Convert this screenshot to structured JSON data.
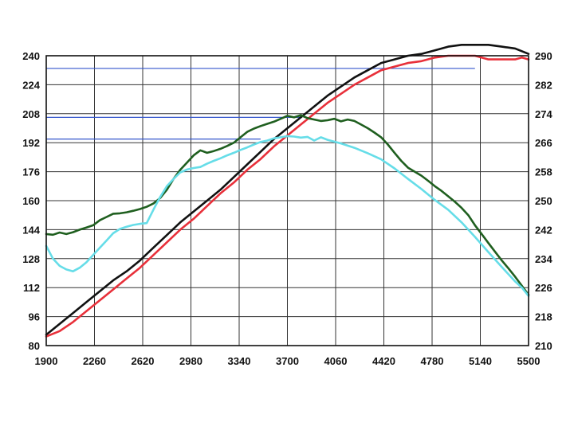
{
  "chart_data": {
    "type": "line",
    "title": "",
    "xlabel": "",
    "ylabel": "",
    "y2label": "",
    "xlim": [
      1900,
      5500
    ],
    "ylim": [
      80,
      240
    ],
    "y2lim": [
      210,
      290
    ],
    "grid": true,
    "legend": "none",
    "x_ticks": [
      1900,
      2260,
      2620,
      2980,
      3340,
      3700,
      4060,
      4420,
      4780,
      5140,
      5500
    ],
    "y_ticks_left": [
      80,
      96,
      112,
      128,
      144,
      160,
      176,
      192,
      208,
      224,
      240
    ],
    "y_ticks_right": [
      210,
      218,
      226,
      234,
      242,
      250,
      258,
      266,
      274,
      282,
      290
    ],
    "colors": {
      "grid": "#333333",
      "guides": "#3355cc",
      "black": "#111111",
      "red": "#e8303a",
      "green": "#1f5f1f",
      "cyan": "#66dde8"
    },
    "series": [
      {
        "color": "#111111",
        "axis": "left",
        "x": [
          1900,
          2000,
          2100,
          2200,
          2300,
          2400,
          2500,
          2600,
          2700,
          2800,
          2900,
          3000,
          3100,
          3200,
          3300,
          3400,
          3500,
          3600,
          3700,
          3800,
          3900,
          4000,
          4100,
          4200,
          4300,
          4400,
          4500,
          4600,
          4700,
          4800,
          4900,
          5000,
          5100,
          5200,
          5300,
          5400,
          5500
        ],
        "values": [
          86,
          92,
          98,
          104,
          110,
          116,
          121,
          127,
          134,
          141,
          148,
          154,
          160,
          166,
          173,
          180,
          187,
          194,
          200,
          206,
          212,
          218,
          223,
          228,
          232,
          236,
          238,
          240,
          241,
          243,
          245,
          246,
          246,
          246,
          245,
          244,
          241
        ]
      },
      {
        "color": "#e8303a",
        "axis": "left",
        "x": [
          1900,
          2000,
          2100,
          2200,
          2300,
          2400,
          2500,
          2600,
          2700,
          2800,
          2900,
          3000,
          3100,
          3200,
          3300,
          3400,
          3500,
          3600,
          3700,
          3800,
          3900,
          4000,
          4100,
          4200,
          4300,
          4400,
          4500,
          4600,
          4700,
          4800,
          4900,
          5000,
          5100,
          5200,
          5300,
          5400,
          5450,
          5500
        ],
        "values": [
          85,
          88,
          93,
          99,
          105,
          111,
          117,
          123,
          130,
          137,
          144,
          150,
          157,
          164,
          170,
          177,
          183,
          190,
          196,
          202,
          208,
          214,
          219,
          224,
          228,
          232,
          234,
          236,
          237,
          239,
          240,
          240,
          240,
          238,
          238,
          238,
          239,
          238
        ]
      },
      {
        "color": "#1f5f1f",
        "axis": "right",
        "x": [
          1900,
          1950,
          2000,
          2050,
          2100,
          2150,
          2200,
          2250,
          2300,
          2350,
          2400,
          2450,
          2500,
          2550,
          2600,
          2650,
          2700,
          2750,
          2800,
          2850,
          2900,
          2950,
          3000,
          3050,
          3100,
          3150,
          3200,
          3250,
          3300,
          3350,
          3400,
          3450,
          3500,
          3550,
          3600,
          3650,
          3700,
          3750,
          3800,
          3850,
          3900,
          3950,
          4000,
          4050,
          4100,
          4150,
          4200,
          4250,
          4300,
          4350,
          4400,
          4450,
          4500,
          4550,
          4600,
          4650,
          4700,
          4750,
          4800,
          4850,
          4900,
          4950,
          5000,
          5050,
          5100,
          5150,
          5200,
          5250,
          5300,
          5350,
          5400,
          5450,
          5500
        ],
        "values": [
          240.8,
          240.6,
          241.2,
          240.8,
          241.3,
          242.0,
          242.6,
          243.2,
          244.6,
          245.5,
          246.4,
          246.5,
          246.8,
          247.2,
          247.7,
          248.3,
          249.2,
          250.7,
          253.0,
          256.0,
          258.5,
          260.5,
          262.5,
          263.9,
          263.2,
          263.7,
          264.3,
          265.1,
          266.0,
          267.5,
          269.0,
          269.9,
          270.6,
          271.2,
          271.8,
          272.6,
          273.4,
          273.0,
          273.6,
          272.8,
          272.4,
          272.0,
          272.2,
          272.6,
          271.9,
          272.4,
          272.0,
          271.0,
          270.0,
          268.8,
          267.5,
          265.5,
          263.2,
          261.0,
          259.1,
          258.0,
          256.9,
          255.5,
          254.0,
          252.7,
          251.2,
          249.7,
          248.0,
          246.0,
          243.2,
          240.8,
          238.3,
          235.9,
          233.5,
          231.3,
          229.0,
          226.5,
          224.0
        ]
      },
      {
        "color": "#66dde8",
        "axis": "right",
        "x": [
          1900,
          1950,
          2000,
          2050,
          2100,
          2150,
          2200,
          2250,
          2300,
          2350,
          2400,
          2450,
          2500,
          2550,
          2600,
          2650,
          2700,
          2750,
          2800,
          2850,
          2900,
          2950,
          3000,
          3050,
          3100,
          3150,
          3200,
          3250,
          3300,
          3350,
          3400,
          3450,
          3500,
          3550,
          3600,
          3650,
          3700,
          3750,
          3800,
          3850,
          3900,
          3950,
          4000,
          4100,
          4200,
          4300,
          4400,
          4500,
          4600,
          4700,
          4800,
          4900,
          5000,
          5100,
          5200,
          5300,
          5400,
          5450,
          5500
        ],
        "values": [
          237.5,
          234.0,
          232.0,
          231.0,
          230.5,
          231.5,
          233.0,
          235.0,
          237.0,
          239.0,
          241.0,
          242.2,
          242.8,
          243.3,
          243.6,
          243.8,
          247.5,
          251.0,
          254.0,
          256.0,
          257.8,
          258.6,
          259.0,
          259.3,
          260.2,
          261.0,
          261.7,
          262.5,
          263.2,
          264.0,
          264.7,
          265.5,
          266.2,
          266.6,
          267.2,
          267.5,
          267.8,
          267.7,
          267.4,
          267.6,
          266.6,
          267.5,
          266.8,
          265.8,
          264.6,
          263.1,
          261.4,
          258.9,
          256.0,
          253.2,
          250.2,
          247.5,
          244.0,
          240.0,
          235.8,
          231.7,
          227.7,
          226.0,
          223.7
        ]
      }
    ],
    "guide_lines": [
      {
        "axis": "left",
        "y": 233,
        "x_from": 1900,
        "x_to": 5100
      },
      {
        "axis": "left",
        "y": 206,
        "x_from": 1900,
        "x_to": 3800
      },
      {
        "axis": "left",
        "y": 194,
        "x_from": 1900,
        "x_to": 3500
      }
    ]
  }
}
